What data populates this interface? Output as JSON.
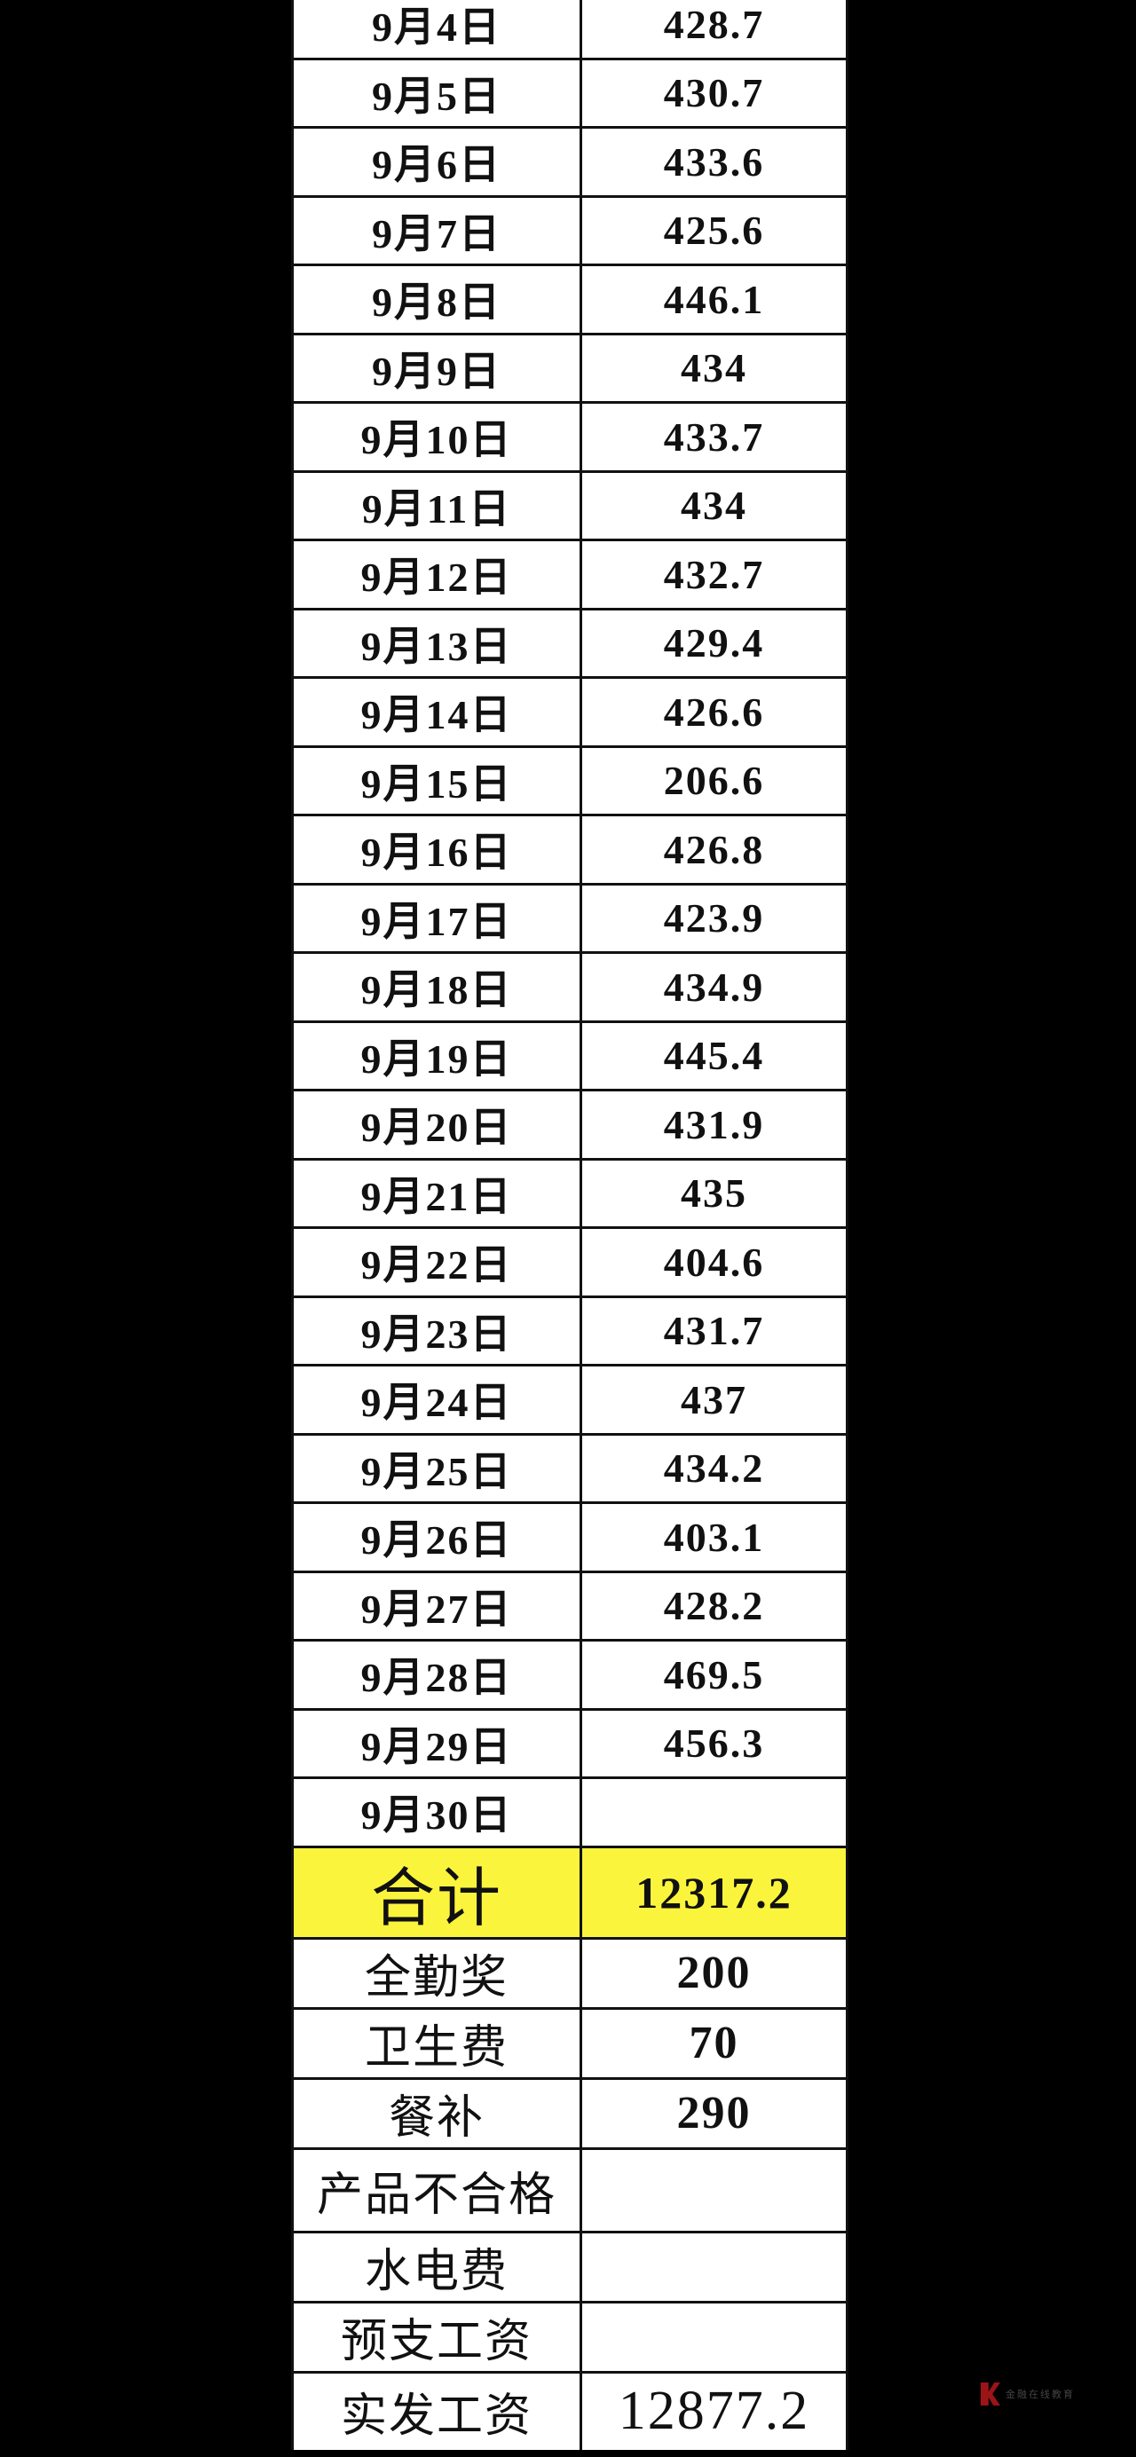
{
  "days": [
    {
      "date": "9月4日",
      "value": "428.7"
    },
    {
      "date": "9月5日",
      "value": "430.7"
    },
    {
      "date": "9月6日",
      "value": "433.6"
    },
    {
      "date": "9月7日",
      "value": "425.6"
    },
    {
      "date": "9月8日",
      "value": "446.1"
    },
    {
      "date": "9月9日",
      "value": "434"
    },
    {
      "date": "9月10日",
      "value": "433.7"
    },
    {
      "date": "9月11日",
      "value": "434"
    },
    {
      "date": "9月12日",
      "value": "432.7"
    },
    {
      "date": "9月13日",
      "value": "429.4"
    },
    {
      "date": "9月14日",
      "value": "426.6"
    },
    {
      "date": "9月15日",
      "value": "206.6"
    },
    {
      "date": "9月16日",
      "value": "426.8"
    },
    {
      "date": "9月17日",
      "value": "423.9"
    },
    {
      "date": "9月18日",
      "value": "434.9"
    },
    {
      "date": "9月19日",
      "value": "445.4"
    },
    {
      "date": "9月20日",
      "value": "431.9"
    },
    {
      "date": "9月21日",
      "value": "435"
    },
    {
      "date": "9月22日",
      "value": "404.6"
    },
    {
      "date": "9月23日",
      "value": "431.7"
    },
    {
      "date": "9月24日",
      "value": "437"
    },
    {
      "date": "9月25日",
      "value": "434.2"
    },
    {
      "date": "9月26日",
      "value": "403.1"
    },
    {
      "date": "9月27日",
      "value": "428.2"
    },
    {
      "date": "9月28日",
      "value": "469.5"
    },
    {
      "date": "9月29日",
      "value": "456.3"
    },
    {
      "date": "9月30日",
      "value": ""
    }
  ],
  "total": {
    "label": "合计",
    "value": "12317.2",
    "highlight_color": "#fbf43c"
  },
  "items": [
    {
      "label": "全勤奖",
      "value": "200"
    },
    {
      "label": "卫生费",
      "value": "70"
    },
    {
      "label": "餐补",
      "value": "290"
    },
    {
      "label": "产品不合格",
      "value": ""
    },
    {
      "label": "水电费",
      "value": ""
    },
    {
      "label": "预支工资",
      "value": ""
    }
  ],
  "final": {
    "label": "实发工资",
    "value": "12877.2"
  },
  "watermark": {
    "text": "金融在线教育",
    "logo_color": "#9b1418"
  }
}
